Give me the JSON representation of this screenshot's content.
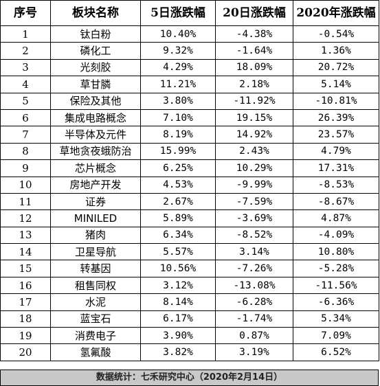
{
  "table": {
    "headers": [
      "序号",
      "板块名称",
      "5日涨跌幅",
      "20日涨跌幅",
      "2020年涨跌幅"
    ],
    "rows": [
      [
        "1",
        "钛白粉",
        "10.40%",
        "-4.38%",
        "-0.54%"
      ],
      [
        "2",
        "磷化工",
        "9.32%",
        "-1.64%",
        "1.36%"
      ],
      [
        "3",
        "光刻胶",
        "4.29%",
        "18.09%",
        "20.72%"
      ],
      [
        "4",
        "草甘膦",
        "11.21%",
        "2.18%",
        "5.14%"
      ],
      [
        "5",
        "保险及其他",
        "3.80%",
        "-11.92%",
        "-10.81%"
      ],
      [
        "6",
        "集成电路概念",
        "7.10%",
        "19.15%",
        "26.39%"
      ],
      [
        "7",
        "半导体及元件",
        "8.19%",
        "14.92%",
        "23.57%"
      ],
      [
        "8",
        "草地贪夜蛾防治",
        "15.99%",
        "2.43%",
        "4.79%"
      ],
      [
        "9",
        "芯片概念",
        "6.25%",
        "10.29%",
        "17.31%"
      ],
      [
        "10",
        "房地产开发",
        "4.53%",
        "-9.99%",
        "-8.53%"
      ],
      [
        "11",
        "证券",
        "2.67%",
        "-7.59%",
        "-8.67%"
      ],
      [
        "12",
        "MINILED",
        "5.89%",
        "-3.69%",
        "4.87%"
      ],
      [
        "13",
        "猪肉",
        "6.34%",
        "-8.52%",
        "-4.09%"
      ],
      [
        "14",
        "卫星导航",
        "5.57%",
        "3.14%",
        "10.80%"
      ],
      [
        "15",
        "转基因",
        "10.56%",
        "-7.26%",
        "-5.28%"
      ],
      [
        "16",
        "租售同权",
        "3.12%",
        "-13.08%",
        "-11.56%"
      ],
      [
        "17",
        "水泥",
        "8.14%",
        "-6.28%",
        "-6.36%"
      ],
      [
        "18",
        "蓝宝石",
        "6.17%",
        "-1.74%",
        "5.34%"
      ],
      [
        "19",
        "消费电子",
        "3.90%",
        "0.87%",
        "7.09%"
      ],
      [
        "20",
        "氢氟酸",
        "3.82%",
        "3.19%",
        "6.52%"
      ]
    ]
  },
  "footer": {
    "text": "数据统计：七禾研究中心（2020年2月14日）",
    "background": "#c8c8c8"
  }
}
